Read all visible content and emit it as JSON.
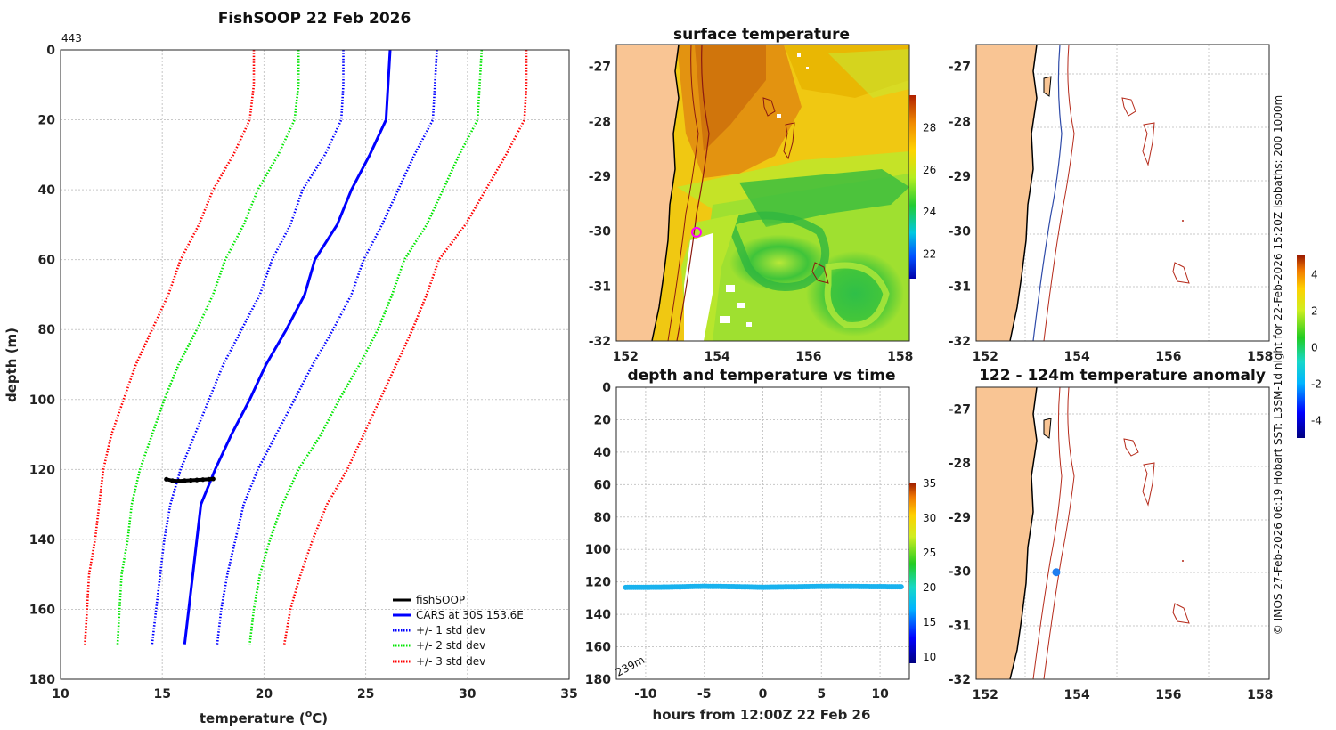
{
  "chart_data": [
    {
      "type": "line",
      "panel": "profile",
      "title": "FishSOOP 22 Feb 2026",
      "corner_label": "443",
      "xlabel": "temperature (",
      "xlabel_sup": "o",
      "xlabel_end": "C)",
      "ylabel": "depth (m)",
      "xlim": [
        10,
        35
      ],
      "ylim": [
        0,
        180
      ],
      "xticks": [
        10,
        15,
        20,
        25,
        30,
        35
      ],
      "yticks": [
        0,
        20,
        40,
        60,
        80,
        100,
        120,
        140,
        160,
        180
      ],
      "depths": [
        0,
        10,
        20,
        30,
        40,
        50,
        60,
        70,
        80,
        90,
        100,
        110,
        120,
        130,
        140,
        150,
        160,
        170
      ],
      "series": [
        {
          "name": "CARS at 30S 153.6E",
          "color": "#0000ff",
          "style": "solid",
          "values": [
            26.2,
            26.1,
            26.0,
            25.2,
            24.3,
            23.6,
            22.5,
            22.0,
            21.1,
            20.1,
            19.3,
            18.4,
            17.6,
            16.9,
            16.7,
            16.5,
            16.3,
            16.1
          ]
        },
        {
          "name": "+/- 1 std dev",
          "color": "#0000ff",
          "style": "dotted",
          "values": [
            23.9,
            23.9,
            23.8,
            23.0,
            21.9,
            21.3,
            20.4,
            19.8,
            18.9,
            18.0,
            17.3,
            16.6,
            15.9,
            15.4,
            15.1,
            14.9,
            14.7,
            14.5
          ]
        },
        {
          "name": "+/- 1 std dev",
          "color": "#0000ff",
          "style": "dotted",
          "values": [
            28.5,
            28.4,
            28.3,
            27.4,
            26.6,
            25.8,
            24.9,
            24.3,
            23.4,
            22.4,
            21.5,
            20.6,
            19.7,
            19.0,
            18.6,
            18.2,
            17.9,
            17.7
          ]
        },
        {
          "name": "+/- 2 std dev",
          "color": "#00e600",
          "style": "dotted",
          "values": [
            21.7,
            21.7,
            21.5,
            20.7,
            19.7,
            19.0,
            18.1,
            17.5,
            16.7,
            15.8,
            15.1,
            14.5,
            13.9,
            13.5,
            13.3,
            13.0,
            12.9,
            12.8
          ]
        },
        {
          "name": "+/- 2 std dev",
          "color": "#00e600",
          "style": "dotted",
          "values": [
            30.7,
            30.6,
            30.5,
            29.6,
            28.8,
            28.0,
            26.9,
            26.3,
            25.6,
            24.7,
            23.7,
            22.8,
            21.7,
            20.9,
            20.3,
            19.8,
            19.5,
            19.3
          ]
        },
        {
          "name": "+/- 3 std dev",
          "color": "#ff0000",
          "style": "dotted",
          "values": [
            19.5,
            19.5,
            19.3,
            18.5,
            17.5,
            16.8,
            15.9,
            15.3,
            14.5,
            13.7,
            13.1,
            12.5,
            12.1,
            11.9,
            11.7,
            11.4,
            11.3,
            11.2
          ]
        },
        {
          "name": "+/- 3 std dev",
          "color": "#ff0000",
          "style": "dotted",
          "values": [
            32.9,
            32.9,
            32.8,
            31.9,
            30.9,
            29.9,
            28.6,
            28.0,
            27.3,
            26.5,
            25.7,
            24.9,
            24.1,
            23.1,
            22.4,
            21.8,
            21.3,
            21.0
          ]
        }
      ],
      "fishsoop": {
        "name": "fishSOOP",
        "color": "#000000",
        "temperature": [
          15.2,
          15.5,
          15.8,
          16.1,
          16.4,
          16.7,
          17.0,
          17.3,
          17.5
        ],
        "depth": [
          122.8,
          123.2,
          123.3,
          123.2,
          123.1,
          123.0,
          122.9,
          122.8,
          122.7
        ]
      },
      "legend": [
        "fishSOOP",
        "CARS at 30S 153.6E",
        "+/- 1 std dev",
        "+/- 2 std dev",
        "+/- 3 std dev"
      ],
      "legend_position": "bottom-right"
    },
    {
      "type": "heatmap",
      "panel": "sst_map",
      "title": "surface temperature",
      "xlim": [
        151.8,
        158.2
      ],
      "ylim": [
        -32,
        -26.6
      ],
      "xticks": [
        152,
        154,
        156,
        158
      ],
      "yticks": [
        -27,
        -28,
        -29,
        -30,
        -31,
        -32
      ],
      "colorbar_ticks": [
        22,
        24,
        26,
        28
      ],
      "colorbar_range": [
        20.8,
        29.5
      ],
      "vessel_position": {
        "lon": 153.55,
        "lat": -30.02,
        "color": "#ff00ff"
      }
    },
    {
      "type": "scatter",
      "panel": "depth_time",
      "title": "depth and temperature vs time",
      "xlabel": "hours from 12:00Z 22 Feb 26",
      "xlim": [
        -12.5,
        12.5
      ],
      "ylim": [
        0,
        180
      ],
      "xticks": [
        -10,
        -5,
        0,
        5,
        10
      ],
      "yticks": [
        0,
        20,
        40,
        60,
        80,
        100,
        120,
        140,
        160,
        180
      ],
      "colorbar_ticks": [
        10,
        15,
        20,
        25,
        30,
        35
      ],
      "colorbar_range": [
        9,
        35
      ],
      "corner_note": "239m",
      "hours": [
        -11.7,
        -8,
        -5,
        -2,
        0,
        3,
        6,
        9,
        11.8
      ],
      "depth": [
        123.4,
        123.2,
        122.7,
        123.0,
        123.3,
        123.0,
        122.7,
        122.9,
        123.0
      ],
      "temperature": [
        16.4,
        16.6,
        16.9,
        16.7,
        16.5,
        16.8,
        17.0,
        16.9,
        16.7
      ],
      "marker_color": "#19b2ee"
    },
    {
      "type": "line",
      "panel": "bathymetry_map",
      "title": "",
      "xlim": [
        151.8,
        158.2
      ],
      "ylim": [
        -32,
        -26.6
      ],
      "xticks": [
        152,
        154,
        156,
        158
      ],
      "yticks": [
        -27,
        -28,
        -29,
        -30,
        -31,
        -32
      ],
      "isobaths": [
        200,
        1000
      ]
    },
    {
      "type": "scatter",
      "panel": "anomaly_map",
      "title": "122 - 124m temperature anomaly",
      "xlim": [
        151.8,
        158.2
      ],
      "ylim": [
        -32,
        -26.6
      ],
      "xticks": [
        152,
        154,
        156,
        158
      ],
      "yticks": [
        -27,
        -28,
        -29,
        -30,
        -31,
        -32
      ],
      "colorbar_ticks": [
        -4,
        -2,
        0,
        2,
        4
      ],
      "colorbar_range": [
        -5,
        5
      ],
      "point": {
        "lon": 153.55,
        "lat": -30.02,
        "anomaly": -2.7,
        "color": "#1e7ef0"
      }
    }
  ],
  "side_caption": "© IMOS 27-Feb-2026 06:19 Hobart SST: L3SM-1d night for 22-Feb-2026 15:20Z isobaths: 200  1000m",
  "colors": {
    "land": "#f9c594",
    "isobath_200": "#2e4aa8",
    "isobath_1000": "#b52a1a",
    "grid": "#c8c8c8"
  }
}
